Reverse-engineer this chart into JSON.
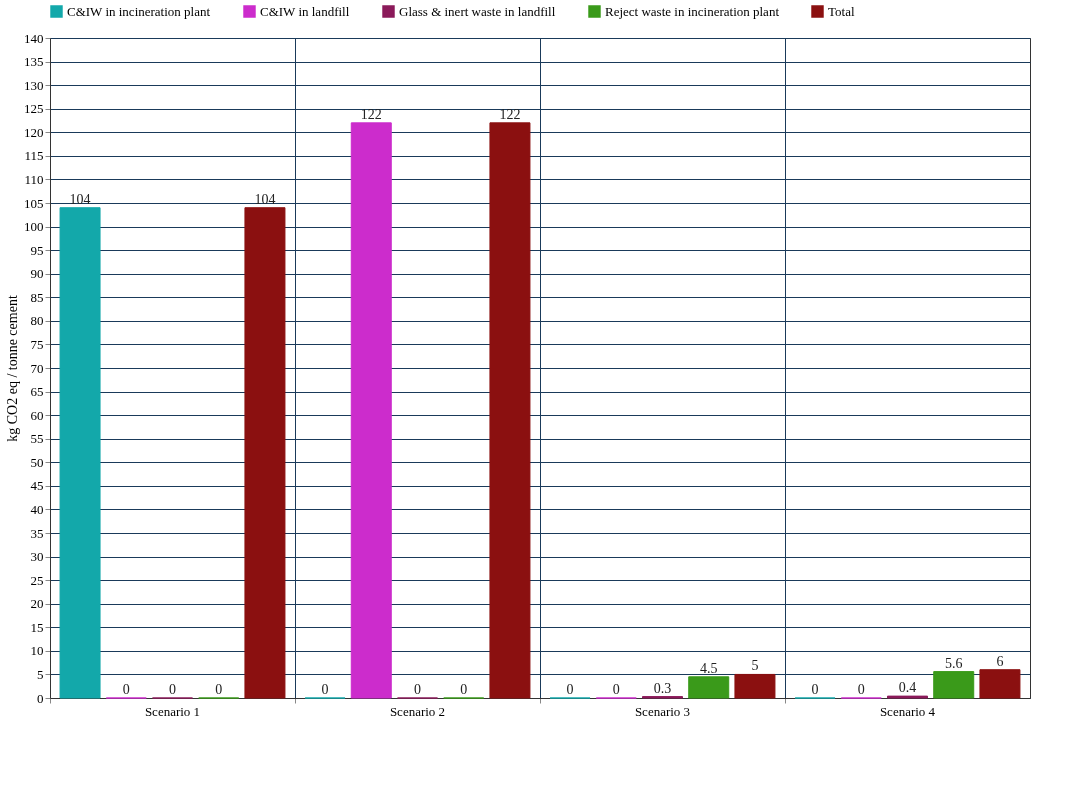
{
  "chart_data": {
    "type": "bar",
    "ylabel": "kg CO2 eq / tonne cement",
    "categories": [
      "Scenario 1",
      "Scenario 2",
      "Scenario 3",
      "Scenario 4"
    ],
    "series": [
      {
        "name": "C&IW in incineration plant",
        "color": "#13a8aa",
        "values": [
          104,
          0,
          0,
          0
        ]
      },
      {
        "name": "C&IW in landfill",
        "color": "#cc2ccc",
        "values": [
          0,
          122,
          0,
          0
        ]
      },
      {
        "name": "Glass & inert waste in landfill",
        "color": "#8b1a5a",
        "values": [
          0,
          0,
          0.3,
          0.4
        ]
      },
      {
        "name": "Reject waste in incineration plant",
        "color": "#3a9a1a",
        "values": [
          0,
          0,
          4.5,
          5.6
        ]
      },
      {
        "name": "Total",
        "color": "#8b1010",
        "values": [
          104,
          122,
          5,
          6
        ]
      }
    ],
    "ylim": [
      0,
      140
    ],
    "yticks": [
      0,
      5,
      10,
      15,
      20,
      25,
      30,
      35,
      40,
      45,
      50,
      55,
      60,
      65,
      70,
      75,
      80,
      85,
      90,
      95,
      100,
      105,
      110,
      115,
      120,
      125,
      130,
      135,
      140
    ],
    "grid": true,
    "legend": "top",
    "data_labels": true
  }
}
